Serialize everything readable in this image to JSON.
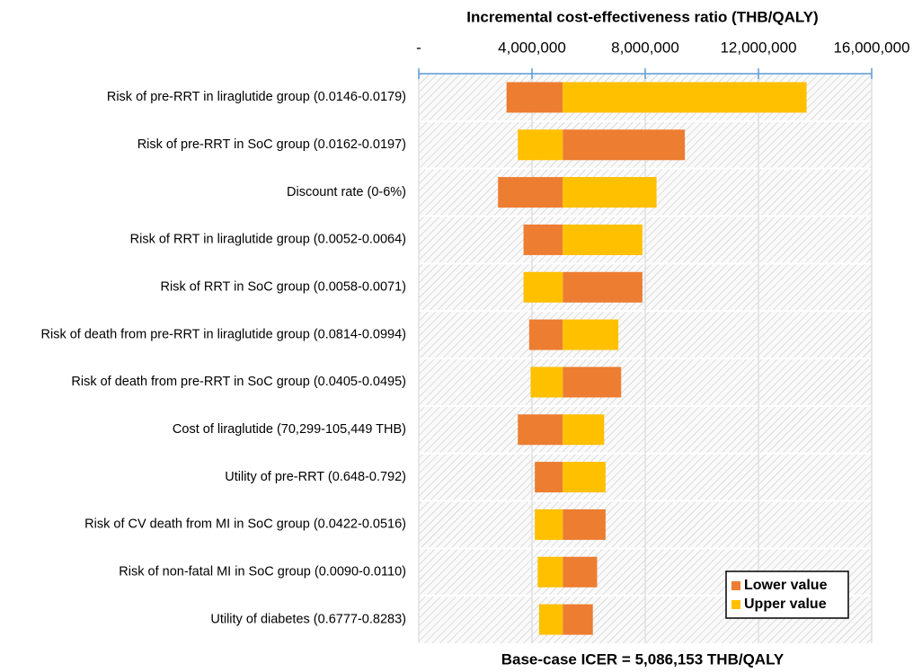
{
  "chart_data": {
    "type": "tornado",
    "title": "Incremental cost-effectiveness ratio (THB/QALY)",
    "categories": [
      "Risk of pre-RRT in liraglutide group (0.0146-0.0179)",
      "Risk of pre-RRT in SoC group (0.0162-0.0197)",
      "Discount rate (0-6%)",
      "Risk of RRT in liraglutide group (0.0052-0.0064)",
      "Risk of RRT in SoC group (0.0058-0.0071)",
      "Risk of death from pre-RRT in liraglutide group (0.0814-0.0994)",
      "Risk of death from pre-RRT in SoC group (0.0405-0.0495)",
      "Cost of liraglutide (70,299-105,449 THB)",
      "Utility of pre-RRT (0.648-0.792)",
      "Risk of CV death from MI in SoC group (0.0422-0.0516)",
      "Risk of non-fatal MI in SoC group (0.0090-0.0110)",
      "Utility of diabetes (0.6777-0.8283)"
    ],
    "base": {
      "value": 5086153,
      "label": "Base-case ICER = 5,086,153 THB/QALY"
    },
    "series": [
      {
        "name": "Lower value",
        "color": "#ed7d31",
        "values": [
          3100000,
          9400000,
          2800000,
          3700000,
          7900000,
          3900000,
          7150000,
          3500000,
          4100000,
          6600000,
          6300000,
          6150000
        ]
      },
      {
        "name": "Upper value",
        "color": "#ffc000",
        "values": [
          13700000,
          3500000,
          8400000,
          7900000,
          3700000,
          7050000,
          3950000,
          6550000,
          6600000,
          4100000,
          4200000,
          4250000
        ]
      }
    ],
    "xlim": [
      0,
      16000000
    ],
    "xticks": [
      {
        "value": 0,
        "label": "-"
      },
      {
        "value": 4000000,
        "label": "4,000,000"
      },
      {
        "value": 8000000,
        "label": "8,000,000"
      },
      {
        "value": 12000000,
        "label": "12,000,000"
      },
      {
        "value": 16000000,
        "label": "16,000,000"
      }
    ],
    "legend": "bottom-right",
    "grid": true
  }
}
